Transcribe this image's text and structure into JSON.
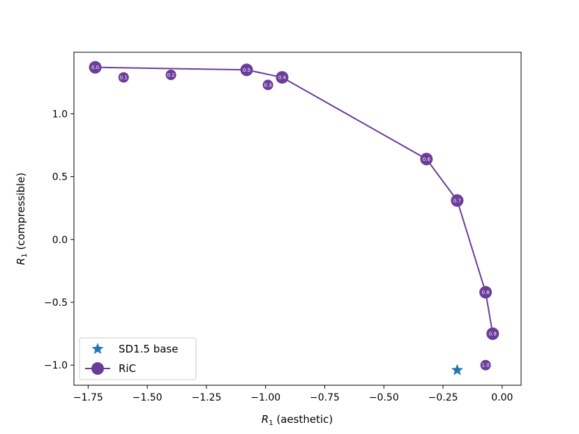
{
  "chart_data": {
    "type": "scatter",
    "xlabel_main": "R",
    "xlabel_sub": "1",
    "xlabel_rest": " (aesthetic)",
    "ylabel_main": "R",
    "ylabel_sub": "1",
    "ylabel_rest": " (compressible)",
    "xlim": [
      -1.81,
      0.08
    ],
    "ylim": [
      -1.16,
      1.49
    ],
    "xticks": [
      -1.75,
      -1.5,
      -1.25,
      -1.0,
      -0.75,
      -0.5,
      -0.25,
      0.0
    ],
    "xtick_labels": [
      "−1.75",
      "−1.50",
      "−1.25",
      "−1.00",
      "−0.75",
      "−0.50",
      "−0.25",
      "0.00"
    ],
    "yticks": [
      -1.0,
      -0.5,
      0.0,
      0.5,
      1.0
    ],
    "ytick_labels": [
      "−1.0",
      "−0.5",
      "0.0",
      "0.5",
      "1.0"
    ],
    "grid": false,
    "legend_position": "lower-left",
    "series": [
      {
        "name": "SD1.5 base",
        "kind": "marker",
        "marker": "star",
        "color": "#1f77b4",
        "points": [
          {
            "x": -0.19,
            "y": -1.04
          }
        ]
      },
      {
        "name": "RiC",
        "kind": "line-marker",
        "marker": "circle",
        "color": "#6a3d9a",
        "line_x": [
          -1.72,
          -1.08,
          -0.93,
          -0.32,
          -0.19,
          -0.07,
          -0.04
        ],
        "line_y": [
          1.37,
          1.35,
          1.29,
          0.64,
          0.31,
          -0.42,
          -0.75
        ],
        "points": [
          {
            "x": -1.72,
            "y": 1.37,
            "label": "0.0",
            "big": true
          },
          {
            "x": -1.6,
            "y": 1.29,
            "label": "0.1",
            "big": false
          },
          {
            "x": -1.4,
            "y": 1.31,
            "label": "0.2",
            "big": false
          },
          {
            "x": -0.99,
            "y": 1.23,
            "label": "0.3",
            "big": false
          },
          {
            "x": -0.93,
            "y": 1.29,
            "label": "0.4",
            "big": true
          },
          {
            "x": -1.08,
            "y": 1.35,
            "label": "0.5",
            "big": true
          },
          {
            "x": -0.32,
            "y": 0.64,
            "label": "0.6",
            "big": true
          },
          {
            "x": -0.19,
            "y": 0.31,
            "label": "0.7",
            "big": true
          },
          {
            "x": -0.07,
            "y": -0.42,
            "label": "0.8",
            "big": true
          },
          {
            "x": -0.04,
            "y": -0.75,
            "label": "0.9",
            "big": true
          },
          {
            "x": -0.07,
            "y": -1.0,
            "label": "1.0",
            "big": false
          }
        ]
      }
    ]
  }
}
